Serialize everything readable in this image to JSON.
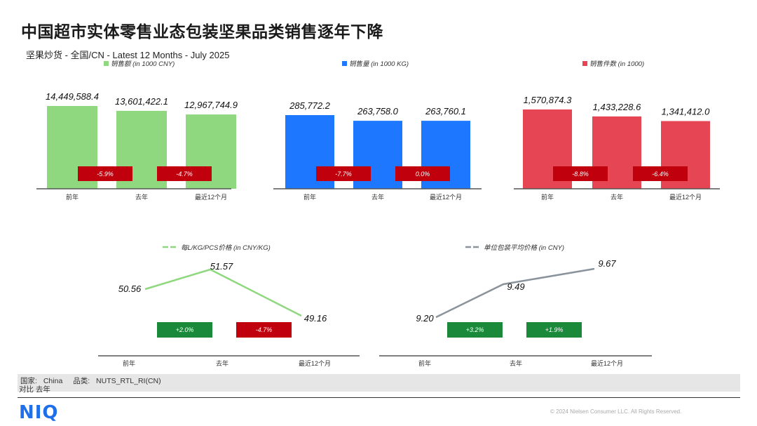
{
  "title": "中国超市实体零售业态包装坚果品类销售逐年下降",
  "subtitle": "坚果炒货 - 全国/CN - Latest 12 Months - July 2025",
  "colors": {
    "green": "#8fd87f",
    "blue": "#1e78ff",
    "red": "#e64553",
    "badge_red": "#c0000c",
    "badge_green": "#1a8a3a",
    "gray_line": "#8a939c",
    "axis": "#555555"
  },
  "chart_data": [
    {
      "type": "bar",
      "legend": "销售额 (in 1000 CNY)",
      "categories": [
        "前年",
        "去年",
        "最近12个月"
      ],
      "values": [
        14449588.4,
        13601422.1,
        12967744.9
      ],
      "value_labels": [
        "14,449,588.4",
        "13,601,422.1",
        "12,967,744.9"
      ],
      "changes": [
        "-5.9%",
        "-4.7%"
      ],
      "color": "#8fd87f"
    },
    {
      "type": "bar",
      "legend": "销售量 (in 1000 KG)",
      "categories": [
        "前年",
        "去年",
        "最近12个月"
      ],
      "values": [
        285772.2,
        263758.0,
        263760.1
      ],
      "value_labels": [
        "285,772.2",
        "263,758.0",
        "263,760.1"
      ],
      "changes": [
        "-7.7%",
        "0.0%"
      ],
      "color": "#1e78ff"
    },
    {
      "type": "bar",
      "legend": "销售件数 (in 1000)",
      "categories": [
        "前年",
        "去年",
        "最近12个月"
      ],
      "values": [
        1570874.3,
        1433228.6,
        1341412.0
      ],
      "value_labels": [
        "1,570,874.3",
        "1,433,228.6",
        "1,341,412.0"
      ],
      "changes": [
        "-8.8%",
        "-6.4%"
      ],
      "color": "#e64553"
    },
    {
      "type": "line",
      "legend": "每L/KG/PCS价格 (in CNY/KG)",
      "categories": [
        "前年",
        "去年",
        "最近12个月"
      ],
      "values": [
        50.56,
        51.57,
        49.16
      ],
      "value_labels": [
        "50.56",
        "51.57",
        "49.16"
      ],
      "changes": [
        "+2.0%",
        "-4.7%"
      ],
      "change_colors": [
        "#1a8a3a",
        "#c0000c"
      ],
      "color": "#8fd87f"
    },
    {
      "type": "line",
      "legend": "单位包装平均价格 (in CNY)",
      "categories": [
        "前年",
        "去年",
        "最近12个月"
      ],
      "values": [
        9.2,
        9.49,
        9.67
      ],
      "value_labels": [
        "9.20",
        "9.49",
        "9.67"
      ],
      "changes": [
        "+3.2%",
        "+1.9%"
      ],
      "change_colors": [
        "#1a8a3a",
        "#1a8a3a"
      ],
      "color": "#8a939c"
    }
  ],
  "footer": {
    "country_label": "国家:",
    "country_value": "China",
    "category_label": "品类:",
    "category_value": "NUTS_RTL_RI(CN)",
    "compare": "对比 去年"
  },
  "logo": "NIQ",
  "copyright": "© 2024 Nielsen Consumer LLC. All Rights Reserved."
}
